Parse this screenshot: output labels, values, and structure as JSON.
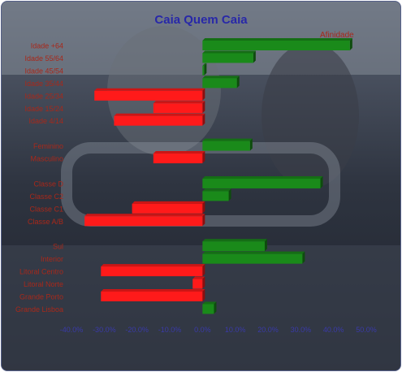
{
  "chart_data": {
    "type": "bar",
    "orientation": "horizontal",
    "title": "Caia Quem Caia",
    "xlabel": "",
    "ylabel": "",
    "xlim": [
      -0.4,
      0.5
    ],
    "x_ticks": [
      "-40.0%",
      "-30.0%",
      "-20.0%",
      "-10.0%",
      "0.0%",
      "10.0%",
      "20.0%",
      "30.0%",
      "40.0%",
      "50.0%"
    ],
    "grid": false,
    "legend_position": "top-right",
    "series": [
      {
        "name": "Afinidade",
        "categories": [
          "Idade +64",
          "Idade 55/64",
          "Idade 45/54",
          "Idade 35/44",
          "Idade 25/34",
          "Idade 15/24",
          "Idade 4/14",
          "",
          "Feminino",
          "Masculino",
          "",
          "Classe D",
          "Classe C2",
          "Classe C1",
          "Classe A/B",
          "",
          "Sul",
          "Interior",
          "Litoral Centro",
          "Litoral Norte",
          "Grande Porto",
          "Grande Lisboa"
        ],
        "values": [
          0.45,
          0.155,
          0.005,
          0.105,
          -0.33,
          -0.15,
          -0.27,
          null,
          0.145,
          -0.15,
          null,
          0.36,
          0.08,
          -0.215,
          -0.36,
          null,
          0.19,
          0.305,
          -0.31,
          -0.03,
          -0.31,
          0.035
        ]
      }
    ],
    "colors": {
      "positive": "#1a8a1a",
      "negative": "#ff1a1a",
      "labels": "#a8281a",
      "ticks": "#3a3aa8",
      "title": "#2828a8"
    }
  }
}
